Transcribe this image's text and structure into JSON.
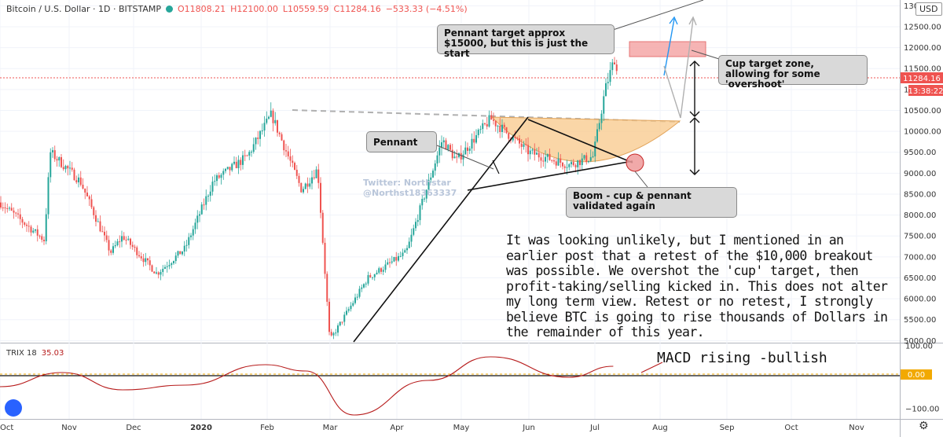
{
  "header": {
    "symbol": "Bitcoin / U.S. Dollar · 1D · BITSTAMP",
    "open": "O11808.21",
    "high": "H12100.00",
    "low": "L10559.59",
    "close": "C11284.16",
    "change": "−533.33 (−4.51%)"
  },
  "currency_button": "USD",
  "price_label": "11284.16",
  "countdown_label": "13:38:22",
  "watermark": {
    "line1": "Twitter: Northstar",
    "line2": "@Northst18363337"
  },
  "callouts": {
    "pennant_target": "Pennant target approx $15000, but this is just the start",
    "cup_target": "Cup target zone, allowing for some 'overshoot'",
    "pennant": "Pennant",
    "boom": "Boom - cup & pennant validated again"
  },
  "commentary": "It was looking unlikely, but I mentioned in an earlier post that a retest of the $10,000 breakout was possible. We overshot the 'cup' target, then profit-taking/selling kicked in. This does not alter my long term view. Retest or no retest, I strongly believe BTC is going to rise thousands of Dollars in the remainder of this year.",
  "macd_note": "MACD rising -bullish",
  "trix": {
    "label": "TRIX 18",
    "value": "35.03"
  },
  "colors": {
    "up": "#26a69a",
    "down": "#ef5350",
    "trix_line": "#b71c1c",
    "cup_fill": "#f8c88a",
    "target_zone": "#f4a7a7",
    "price_line": "#ef5350"
  },
  "chart_data": [
    {
      "type": "candlestick",
      "title": "Bitcoin / U.S. Dollar · 1D · BITSTAMP",
      "y_axis_ticks": [
        "13000.00",
        "12500.00",
        "12000.00",
        "11500.00",
        "11000.00",
        "10500.00",
        "10000.00",
        "9500.00",
        "9000.00",
        "8500.00",
        "8000.00",
        "7500.00",
        "7000.00",
        "6500.00",
        "6000.00",
        "5500.00",
        "5000.00"
      ],
      "x_axis_ticks": [
        "Oct",
        "Nov",
        "Dec",
        "2020",
        "Feb",
        "Mar",
        "Apr",
        "May",
        "Jun",
        "Jul",
        "Aug",
        "Sep",
        "Oct",
        "Nov"
      ],
      "ylim": [
        4950,
        13100
      ],
      "last_close": 11284.16,
      "cup_target_zone": [
        11800,
        12150
      ],
      "price_path": [
        {
          "x": "2019-10-01",
          "y": 8300
        },
        {
          "x": "2019-10-23",
          "y": 7400
        },
        {
          "x": "2019-10-26",
          "y": 9500
        },
        {
          "x": "2019-11-10",
          "y": 8800
        },
        {
          "x": "2019-11-25",
          "y": 7100
        },
        {
          "x": "2019-12-01",
          "y": 7500
        },
        {
          "x": "2019-12-18",
          "y": 6600
        },
        {
          "x": "2020-01-01",
          "y": 7200
        },
        {
          "x": "2020-01-15",
          "y": 8800
        },
        {
          "x": "2020-02-01",
          "y": 9400
        },
        {
          "x": "2020-02-13",
          "y": 10400
        },
        {
          "x": "2020-02-28",
          "y": 8600
        },
        {
          "x": "2020-03-07",
          "y": 9100
        },
        {
          "x": "2020-03-13",
          "y": 5000
        },
        {
          "x": "2020-04-01",
          "y": 6500
        },
        {
          "x": "2020-04-20",
          "y": 7100
        },
        {
          "x": "2020-05-08",
          "y": 9800
        },
        {
          "x": "2020-05-15",
          "y": 9300
        },
        {
          "x": "2020-06-01",
          "y": 10300
        },
        {
          "x": "2020-06-20",
          "y": 9500
        },
        {
          "x": "2020-07-10",
          "y": 9200
        },
        {
          "x": "2020-07-22",
          "y": 9400
        },
        {
          "x": "2020-07-28",
          "y": 11000
        },
        {
          "x": "2020-08-02",
          "y": 11800
        },
        {
          "x": "2020-08-03",
          "y": 11284.16
        }
      ]
    },
    {
      "type": "line",
      "title": "TRIX 18",
      "y_axis_ticks": [
        "100.00",
        "0.00",
        "-100.00"
      ],
      "ylim": [
        -130,
        105
      ],
      "last_value": 35.03,
      "series": [
        {
          "name": "TRIX 18",
          "x": [
            "2019-10-01",
            "2019-11-01",
            "2019-12-01",
            "2020-01-01",
            "2020-02-10",
            "2020-03-01",
            "2020-03-25",
            "2020-05-01",
            "2020-06-01",
            "2020-07-10",
            "2020-08-01"
          ],
          "values": [
            -30,
            15,
            -40,
            -25,
            40,
            20,
            -120,
            -10,
            65,
            0,
            35
          ]
        }
      ]
    }
  ]
}
